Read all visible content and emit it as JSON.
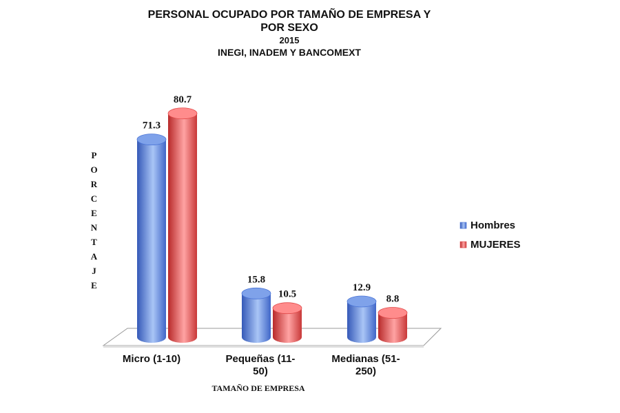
{
  "chart_data": {
    "type": "bar",
    "title": "PERSONAL OCUPADO POR TAMAÑO DE EMPRESA Y POR SEXO",
    "subtitle": "2015",
    "source": "INEGI, INADEM Y BANCOMEXT",
    "y_label": "PORCENTAJE",
    "x_label": "TAMAÑO DE EMPRESA",
    "categories": [
      "Micro (1-10)",
      "Pequeñas (11-50)",
      "Medianas (51-250)"
    ],
    "series": [
      {
        "name": "Hombres",
        "color": "#4a74d6",
        "values": [
          71.3,
          15.8,
          12.9
        ]
      },
      {
        "name": "MUJERES",
        "color": "#e04848",
        "values": [
          80.7,
          10.5,
          8.8
        ]
      }
    ],
    "legend": "right"
  }
}
